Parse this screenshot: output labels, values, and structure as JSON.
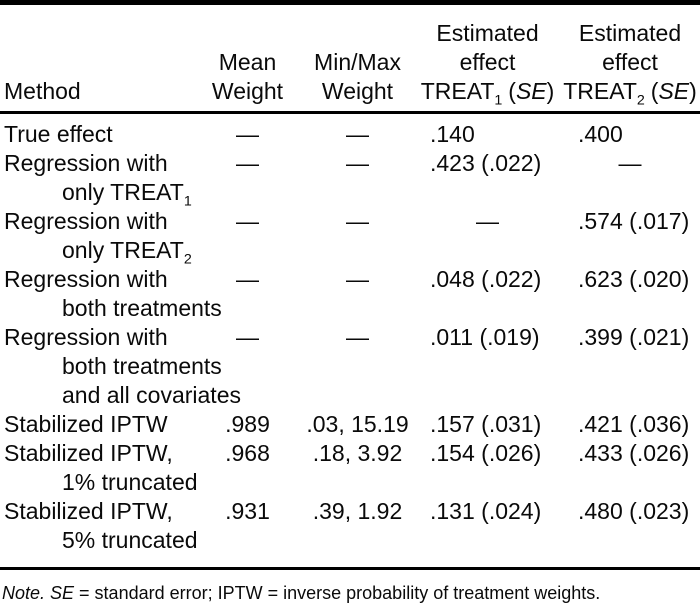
{
  "table": {
    "header": {
      "method": "Method",
      "mean_l1": "Mean",
      "mean_l2": "Weight",
      "minmax_l1": "Min/Max",
      "minmax_l2": "Weight",
      "t1": {
        "l1": "Estimated",
        "l2": "effect",
        "base": "TREAT",
        "sub": "1",
        "po": "(",
        "se": "SE",
        "pc": ")"
      },
      "t2": {
        "l1": "Estimated",
        "l2": "effect",
        "base": "TREAT",
        "sub": "2",
        "po": "(",
        "se": "SE",
        "pc": ")"
      }
    },
    "rows": [
      {
        "method": [
          {
            "t": "True effect"
          }
        ],
        "mean": "—",
        "minmax": "—",
        "t1": ".140",
        "t2": ".400"
      },
      {
        "method": [
          {
            "t": "Regression with"
          },
          {
            "t": "only TREAT",
            "sub": "1"
          }
        ],
        "mean": "—",
        "minmax": "—",
        "t1": ".423 (.022)",
        "t2": "—"
      },
      {
        "method": [
          {
            "t": "Regression with"
          },
          {
            "t": "only TREAT",
            "sub": "2"
          }
        ],
        "mean": "—",
        "minmax": "—",
        "t1": "—",
        "t2": ".574 (.017)"
      },
      {
        "method": [
          {
            "t": "Regression with"
          },
          {
            "t": "both treatments"
          }
        ],
        "mean": "—",
        "minmax": "—",
        "t1": ".048 (.022)",
        "t2": ".623 (.020)"
      },
      {
        "method": [
          {
            "t": "Regression with"
          },
          {
            "t": "both treatments"
          },
          {
            "t": "and all covariates"
          }
        ],
        "mean": "—",
        "minmax": "—",
        "t1": ".011 (.019)",
        "t2": ".399 (.021)"
      },
      {
        "method": [
          {
            "t": "Stabilized IPTW"
          }
        ],
        "mean": ".989",
        "minmax": ".03, 15.19",
        "t1": ".157 (.031)",
        "t2": ".421 (.036)"
      },
      {
        "method": [
          {
            "t": "Stabilized IPTW,"
          },
          {
            "t": "1% truncated"
          }
        ],
        "mean": ".968",
        "minmax": ".18, 3.92",
        "t1": ".154 (.026)",
        "t2": ".433 (.026)"
      },
      {
        "method": [
          {
            "t": "Stabilized IPTW,"
          },
          {
            "t": "5% truncated"
          }
        ],
        "mean": ".931",
        "minmax": ".39, 1.92",
        "t1": ".131 (.024)",
        "t2": ".480 (.023)"
      }
    ],
    "note": {
      "lead": "Note.",
      "se": " SE",
      "rest": " = standard error; IPTW = inverse probability of treatment weights."
    }
  }
}
